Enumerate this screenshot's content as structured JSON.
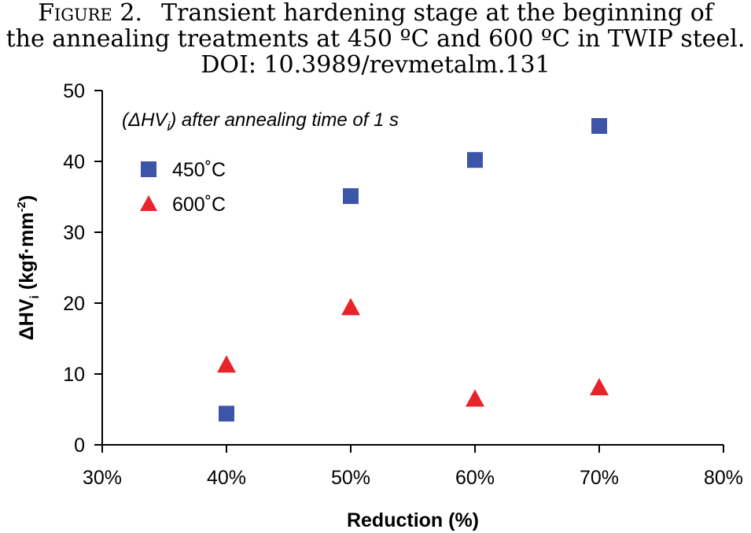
{
  "caption": {
    "label": "Figure 2.",
    "line1": "Transient hardening stage at the beginning of",
    "line2": "the annealing treatments at 450 ºC and 600 ºC in TWIP steel.",
    "line3": "DOI: 10.3989/revmetalm.131"
  },
  "chart_data": {
    "type": "scatter",
    "annotation": {
      "prefix": "(ΔHV",
      "subscript": "i",
      "suffix": ") after annealing time of 1 s"
    },
    "xlabel": "Reduction (%)",
    "ylabel": {
      "main": "ΔHV",
      "subscript": "i",
      "units_open": " (kgf·mm",
      "superscript": "-2",
      "units_close": ")"
    },
    "xlim": [
      30,
      80
    ],
    "ylim": [
      0,
      50
    ],
    "x_ticks": [
      30,
      40,
      50,
      60,
      70,
      80
    ],
    "x_tick_labels": [
      "30%",
      "40%",
      "50%",
      "60%",
      "70%",
      "80%"
    ],
    "y_ticks": [
      0,
      10,
      20,
      30,
      40,
      50
    ],
    "y_tick_labels": [
      "0",
      "10",
      "20",
      "30",
      "40",
      "50"
    ],
    "grid": false,
    "legend_position": "top-left",
    "series": [
      {
        "name": "450˚C",
        "marker": "square",
        "color": "#3d55a8",
        "x": [
          40,
          50,
          60,
          70
        ],
        "y": [
          4.4,
          35.1,
          40.2,
          45.0
        ]
      },
      {
        "name": "600˚C",
        "marker": "triangle",
        "color": "#e8242a",
        "x": [
          40,
          50,
          60,
          70
        ],
        "y": [
          11.3,
          19.4,
          6.5,
          8.1
        ]
      }
    ]
  }
}
